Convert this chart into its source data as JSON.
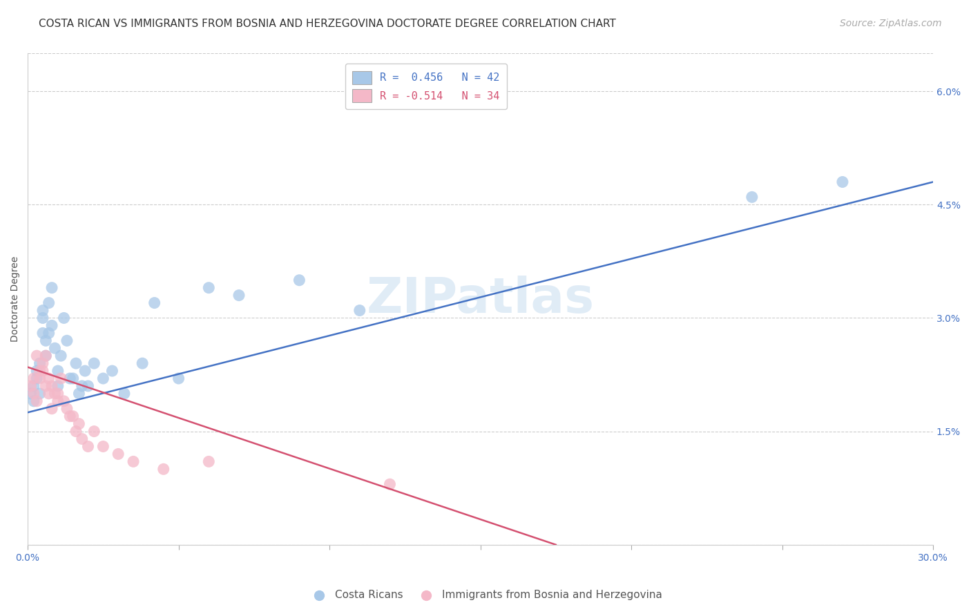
{
  "title": "COSTA RICAN VS IMMIGRANTS FROM BOSNIA AND HERZEGOVINA DOCTORATE DEGREE CORRELATION CHART",
  "source": "Source: ZipAtlas.com",
  "ylabel": "Doctorate Degree",
  "xmin": 0.0,
  "xmax": 0.3,
  "ymin": 0.0,
  "ymax": 0.065,
  "xticks": [
    0.0,
    0.05,
    0.1,
    0.15,
    0.2,
    0.25,
    0.3
  ],
  "ytick_positions": [
    0.0,
    0.015,
    0.03,
    0.045,
    0.06
  ],
  "ytick_labels": [
    "",
    "1.5%",
    "3.0%",
    "4.5%",
    "6.0%"
  ],
  "blue_color": "#a8c8e8",
  "pink_color": "#f4b8c8",
  "blue_line_color": "#4472c4",
  "pink_line_color": "#d45070",
  "legend_blue_label": "R =  0.456   N = 42",
  "legend_pink_label": "R = -0.514   N = 34",
  "legend_label_blue": "Costa Ricans",
  "legend_label_pink": "Immigrants from Bosnia and Herzegovina",
  "watermark": "ZIPatlas",
  "blue_scatter_x": [
    0.001,
    0.002,
    0.002,
    0.003,
    0.003,
    0.004,
    0.004,
    0.005,
    0.005,
    0.005,
    0.006,
    0.006,
    0.007,
    0.007,
    0.008,
    0.008,
    0.009,
    0.01,
    0.01,
    0.011,
    0.012,
    0.013,
    0.014,
    0.015,
    0.016,
    0.017,
    0.018,
    0.019,
    0.02,
    0.022,
    0.025,
    0.028,
    0.032,
    0.038,
    0.042,
    0.05,
    0.06,
    0.07,
    0.09,
    0.11,
    0.24,
    0.27
  ],
  "blue_scatter_y": [
    0.02,
    0.021,
    0.019,
    0.022,
    0.023,
    0.02,
    0.024,
    0.03,
    0.028,
    0.031,
    0.025,
    0.027,
    0.032,
    0.028,
    0.034,
    0.029,
    0.026,
    0.021,
    0.023,
    0.025,
    0.03,
    0.027,
    0.022,
    0.022,
    0.024,
    0.02,
    0.021,
    0.023,
    0.021,
    0.024,
    0.022,
    0.023,
    0.02,
    0.024,
    0.032,
    0.022,
    0.034,
    0.033,
    0.035,
    0.031,
    0.046,
    0.048
  ],
  "pink_scatter_x": [
    0.001,
    0.002,
    0.002,
    0.003,
    0.003,
    0.004,
    0.004,
    0.005,
    0.005,
    0.006,
    0.006,
    0.007,
    0.007,
    0.008,
    0.008,
    0.009,
    0.01,
    0.01,
    0.011,
    0.012,
    0.013,
    0.014,
    0.015,
    0.016,
    0.017,
    0.018,
    0.02,
    0.022,
    0.025,
    0.03,
    0.035,
    0.045,
    0.06,
    0.12
  ],
  "pink_scatter_y": [
    0.021,
    0.022,
    0.02,
    0.025,
    0.019,
    0.023,
    0.022,
    0.024,
    0.023,
    0.025,
    0.021,
    0.022,
    0.02,
    0.018,
    0.021,
    0.02,
    0.02,
    0.019,
    0.022,
    0.019,
    0.018,
    0.017,
    0.017,
    0.015,
    0.016,
    0.014,
    0.013,
    0.015,
    0.013,
    0.012,
    0.011,
    0.01,
    0.011,
    0.008
  ],
  "blue_line_x": [
    0.0,
    0.3
  ],
  "blue_line_y0": 0.0175,
  "blue_line_y1": 0.048,
  "pink_line_x": [
    0.0,
    0.175
  ],
  "pink_line_y0": 0.0235,
  "pink_line_y1": 0.0,
  "title_fontsize": 11,
  "axis_label_fontsize": 10,
  "tick_fontsize": 10,
  "source_fontsize": 10
}
